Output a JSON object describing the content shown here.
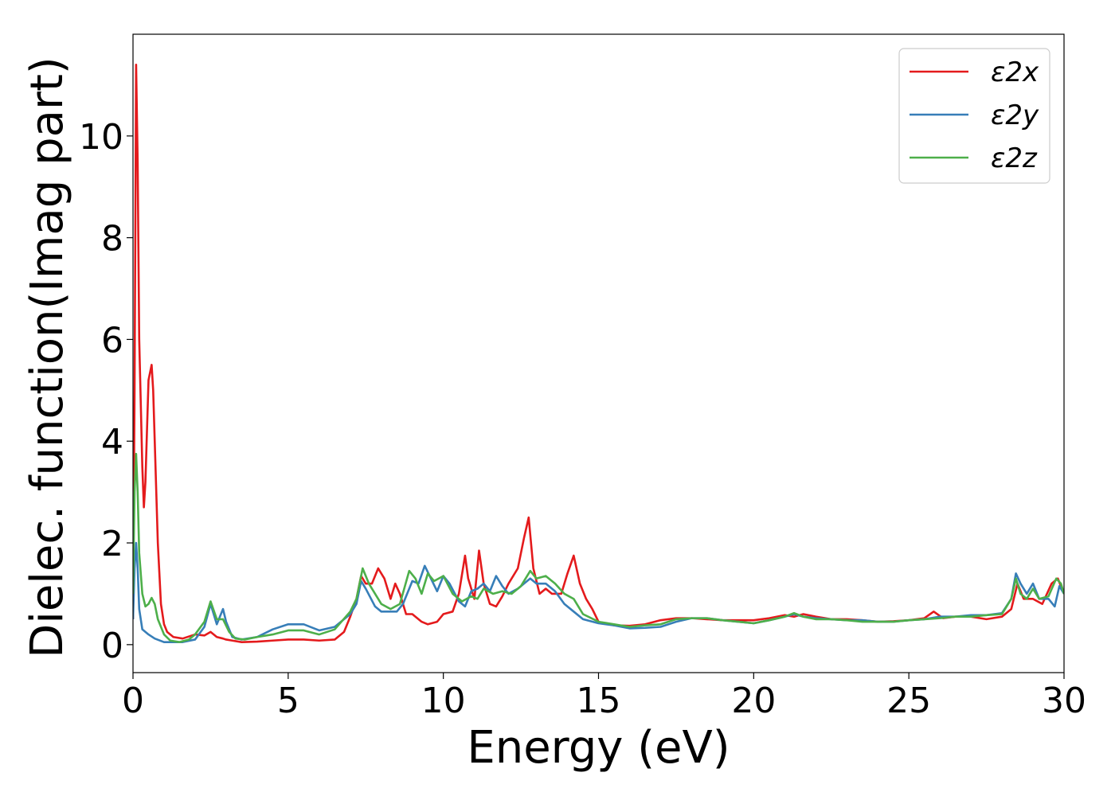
{
  "chart_data": {
    "type": "line",
    "title": "",
    "xlabel": "Energy (eV)",
    "ylabel": "Dielec. function(Imag part)",
    "xlim": [
      0,
      30
    ],
    "ylim": [
      -0.55,
      12.0
    ],
    "xticks": [
      0,
      5,
      10,
      15,
      20,
      25,
      30
    ],
    "yticks": [
      0,
      2,
      4,
      6,
      8,
      10
    ],
    "grid": false,
    "legend_position": "top-right",
    "series": [
      {
        "name": "ε2x",
        "color": "#e41a1c",
        "x": [
          0.0,
          0.05,
          0.1,
          0.15,
          0.2,
          0.3,
          0.35,
          0.4,
          0.5,
          0.6,
          0.65,
          0.7,
          0.8,
          0.9,
          1.0,
          1.1,
          1.3,
          1.6,
          2.0,
          2.3,
          2.5,
          2.7,
          2.9,
          3.0,
          3.2,
          3.5,
          4.0,
          4.5,
          5.0,
          5.5,
          6.0,
          6.5,
          6.8,
          7.0,
          7.2,
          7.35,
          7.5,
          7.7,
          7.9,
          8.1,
          8.3,
          8.45,
          8.6,
          8.8,
          9.0,
          9.3,
          9.5,
          9.8,
          10.0,
          10.3,
          10.5,
          10.7,
          10.8,
          11.0,
          11.15,
          11.3,
          11.5,
          11.7,
          11.9,
          12.1,
          12.4,
          12.6,
          12.75,
          12.9,
          13.1,
          13.3,
          13.5,
          13.8,
          14.0,
          14.2,
          14.4,
          14.6,
          14.8,
          15.0,
          15.5,
          16.0,
          16.5,
          17.0,
          17.5,
          18.0,
          18.5,
          19.0,
          19.5,
          20.0,
          20.5,
          21.0,
          21.3,
          21.6,
          22.0,
          22.5,
          23.0,
          23.5,
          24.0,
          24.5,
          25.0,
          25.5,
          25.8,
          26.1,
          26.5,
          27.0,
          27.5,
          28.0,
          28.3,
          28.5,
          28.7,
          29.0,
          29.3,
          29.6,
          29.8,
          30.0
        ],
        "y": [
          0.5,
          5.0,
          11.4,
          9.5,
          6.0,
          3.5,
          2.7,
          3.2,
          5.2,
          5.5,
          5.0,
          4.0,
          2.0,
          0.8,
          0.4,
          0.25,
          0.15,
          0.12,
          0.2,
          0.18,
          0.25,
          0.15,
          0.12,
          0.1,
          0.08,
          0.05,
          0.06,
          0.08,
          0.1,
          0.1,
          0.08,
          0.1,
          0.25,
          0.55,
          0.9,
          1.35,
          1.2,
          1.2,
          1.5,
          1.3,
          0.9,
          1.2,
          1.0,
          0.6,
          0.6,
          0.45,
          0.4,
          0.45,
          0.6,
          0.65,
          1.0,
          1.75,
          1.3,
          0.9,
          1.85,
          1.2,
          0.8,
          0.75,
          0.95,
          1.2,
          1.5,
          2.1,
          2.5,
          1.5,
          1.0,
          1.1,
          1.0,
          1.0,
          1.4,
          1.75,
          1.2,
          0.9,
          0.7,
          0.45,
          0.38,
          0.37,
          0.4,
          0.48,
          0.52,
          0.52,
          0.5,
          0.48,
          0.48,
          0.48,
          0.52,
          0.58,
          0.55,
          0.6,
          0.55,
          0.5,
          0.5,
          0.48,
          0.45,
          0.46,
          0.48,
          0.52,
          0.65,
          0.52,
          0.55,
          0.55,
          0.5,
          0.55,
          0.7,
          1.2,
          0.9,
          0.9,
          0.8,
          1.2,
          1.3,
          1.0
        ]
      },
      {
        "name": "ε2y",
        "color": "#377eb8",
        "x": [
          0.0,
          0.05,
          0.1,
          0.15,
          0.2,
          0.3,
          0.4,
          0.5,
          0.7,
          1.0,
          1.3,
          1.6,
          2.0,
          2.3,
          2.5,
          2.7,
          2.9,
          3.0,
          3.2,
          3.5,
          4.0,
          4.5,
          5.0,
          5.5,
          6.0,
          6.5,
          7.0,
          7.2,
          7.35,
          7.5,
          7.8,
          8.0,
          8.2,
          8.5,
          8.7,
          9.0,
          9.2,
          9.4,
          9.6,
          9.8,
          10.0,
          10.2,
          10.5,
          10.7,
          10.9,
          11.1,
          11.3,
          11.5,
          11.7,
          11.9,
          12.1,
          12.4,
          12.6,
          12.8,
          13.0,
          13.3,
          13.6,
          13.9,
          14.2,
          14.5,
          15.0,
          15.5,
          16.0,
          16.5,
          17.0,
          17.5,
          18.0,
          18.5,
          19.0,
          19.5,
          20.0,
          20.5,
          21.0,
          21.3,
          21.6,
          22.0,
          22.5,
          23.0,
          23.5,
          24.0,
          24.5,
          25.0,
          25.5,
          26.0,
          26.5,
          27.0,
          27.5,
          28.0,
          28.3,
          28.45,
          28.6,
          28.8,
          29.0,
          29.2,
          29.5,
          29.7,
          29.85,
          30.0
        ],
        "y": [
          0.5,
          1.5,
          2.0,
          1.5,
          0.7,
          0.3,
          0.25,
          0.2,
          0.12,
          0.05,
          0.05,
          0.05,
          0.1,
          0.35,
          0.8,
          0.4,
          0.7,
          0.45,
          0.15,
          0.1,
          0.15,
          0.3,
          0.4,
          0.4,
          0.28,
          0.35,
          0.6,
          0.8,
          1.25,
          1.1,
          0.75,
          0.65,
          0.65,
          0.65,
          0.8,
          1.25,
          1.2,
          1.55,
          1.3,
          1.05,
          1.35,
          1.2,
          0.85,
          0.75,
          1.05,
          1.1,
          1.2,
          1.05,
          1.35,
          1.15,
          1.0,
          1.1,
          1.2,
          1.3,
          1.2,
          1.2,
          1.05,
          0.8,
          0.65,
          0.5,
          0.42,
          0.38,
          0.32,
          0.33,
          0.35,
          0.45,
          0.52,
          0.52,
          0.48,
          0.45,
          0.42,
          0.48,
          0.55,
          0.6,
          0.55,
          0.52,
          0.5,
          0.48,
          0.48,
          0.45,
          0.45,
          0.48,
          0.5,
          0.55,
          0.55,
          0.58,
          0.58,
          0.62,
          0.9,
          1.4,
          1.2,
          1.0,
          1.2,
          0.9,
          0.9,
          0.75,
          1.15,
          1.0
        ]
      },
      {
        "name": "ε2z",
        "color": "#4daf4a",
        "x": [
          0.0,
          0.05,
          0.1,
          0.15,
          0.2,
          0.3,
          0.4,
          0.5,
          0.6,
          0.7,
          0.8,
          1.0,
          1.2,
          1.5,
          1.8,
          2.0,
          2.3,
          2.5,
          2.7,
          2.9,
          3.1,
          3.3,
          3.6,
          4.0,
          4.5,
          5.0,
          5.5,
          6.0,
          6.5,
          7.0,
          7.2,
          7.4,
          7.6,
          7.8,
          8.0,
          8.3,
          8.6,
          8.9,
          9.1,
          9.3,
          9.5,
          9.7,
          10.0,
          10.3,
          10.6,
          10.9,
          11.1,
          11.3,
          11.6,
          11.9,
          12.2,
          12.5,
          12.8,
          13.0,
          13.3,
          13.6,
          13.9,
          14.2,
          14.5,
          15.0,
          15.5,
          16.0,
          16.5,
          17.0,
          17.5,
          18.0,
          18.5,
          19.0,
          19.5,
          20.0,
          20.5,
          21.0,
          21.3,
          21.6,
          22.0,
          22.5,
          23.0,
          23.5,
          24.0,
          24.5,
          25.0,
          25.5,
          26.0,
          26.5,
          27.0,
          27.5,
          28.0,
          28.3,
          28.45,
          28.6,
          28.8,
          29.0,
          29.2,
          29.5,
          29.75,
          29.9,
          30.0
        ],
        "y": [
          1.0,
          3.0,
          3.75,
          3.0,
          1.8,
          1.0,
          0.75,
          0.8,
          0.92,
          0.8,
          0.5,
          0.2,
          0.08,
          0.05,
          0.1,
          0.2,
          0.45,
          0.85,
          0.5,
          0.5,
          0.25,
          0.12,
          0.1,
          0.15,
          0.2,
          0.28,
          0.28,
          0.2,
          0.3,
          0.65,
          0.9,
          1.5,
          1.2,
          1.0,
          0.8,
          0.7,
          0.8,
          1.45,
          1.3,
          1.0,
          1.4,
          1.25,
          1.35,
          1.0,
          0.85,
          0.95,
          0.9,
          1.1,
          1.0,
          1.05,
          1.0,
          1.15,
          1.45,
          1.3,
          1.35,
          1.2,
          1.0,
          0.9,
          0.6,
          0.45,
          0.4,
          0.35,
          0.38,
          0.4,
          0.5,
          0.52,
          0.52,
          0.48,
          0.45,
          0.42,
          0.48,
          0.55,
          0.62,
          0.55,
          0.5,
          0.5,
          0.48,
          0.45,
          0.45,
          0.45,
          0.48,
          0.5,
          0.52,
          0.55,
          0.55,
          0.58,
          0.6,
          0.9,
          1.3,
          1.0,
          0.9,
          1.1,
          0.9,
          0.95,
          1.3,
          1.2,
          1.0
        ]
      }
    ]
  }
}
